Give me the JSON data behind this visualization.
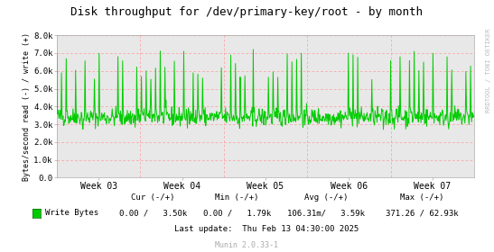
{
  "title": "Disk throughput for /dev/primary-key/root - by month",
  "ylabel": "Bytes/second read (-) / write (+)",
  "xlabel_ticks": [
    "Week 03",
    "Week 04",
    "Week 05",
    "Week 06",
    "Week 07"
  ],
  "ylim": [
    0,
    8000
  ],
  "yticks": [
    0,
    1000,
    2000,
    3000,
    4000,
    5000,
    6000,
    7000,
    8000
  ],
  "ytick_labels": [
    "0.0",
    "1.0k",
    "2.0k",
    "3.0k",
    "4.0k",
    "5.0k",
    "6.0k",
    "7.0k",
    "8.0k"
  ],
  "bg_color": "#ffffff",
  "plot_bg_color": "#e8e8e8",
  "hgrid_color": "#ff9999",
  "vgrid_color": "#ff9999",
  "line_color": "#00cc00",
  "line_width": 0.7,
  "watermark": "RRDTOOL / TOBI OETIKER",
  "legend_label": "Write Bytes",
  "legend_color": "#00cc00",
  "cur_label": "Cur (-/+)",
  "min_label": "Min (-/+)",
  "avg_label": "Avg (-/+)",
  "max_label": "Max (-/+)",
  "cur_val": "0.00 /   3.50k",
  "min_val": "0.00 /   1.79k",
  "avg_val": "106.31m/   3.59k",
  "max_val": "371.26 / 62.93k",
  "last_update": "Last update:  Thu Feb 13 04:30:00 2025",
  "munin_version": "Munin 2.0.33-1",
  "num_points": 800,
  "seed": 42,
  "base_value": 3400,
  "noise_std": 250,
  "week_vlines": [
    0.2,
    0.4,
    0.6,
    0.8
  ]
}
